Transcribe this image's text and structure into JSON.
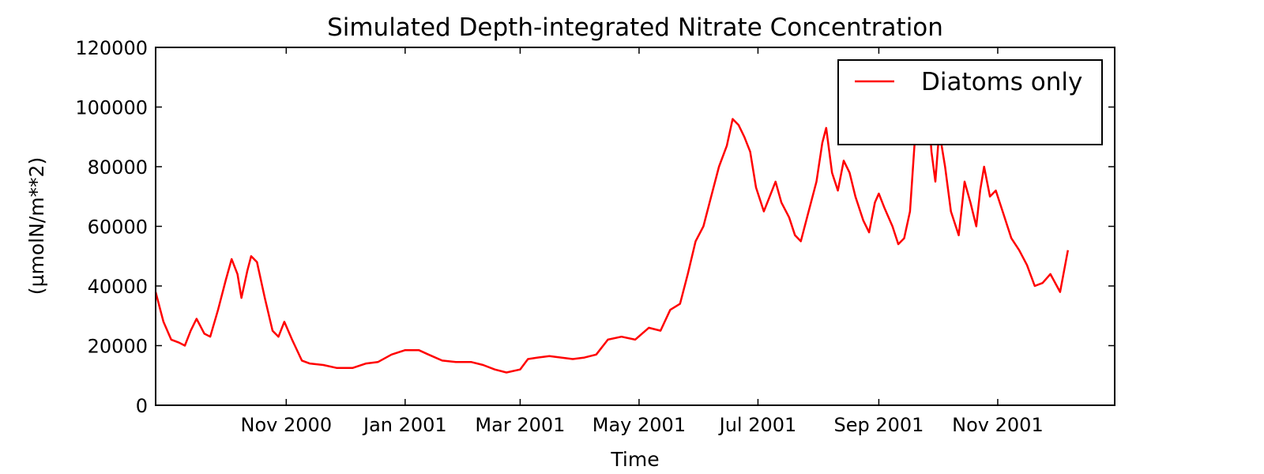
{
  "chart_data": {
    "type": "line",
    "title": "Simulated Depth-integrated Nitrate Concentration",
    "xlabel": "Time",
    "ylabel": "(µmolN/m**2)",
    "x_range": [
      "2000-08-26",
      "2001-12-31"
    ],
    "ylim": [
      0,
      120000
    ],
    "yticks": [
      0,
      20000,
      40000,
      60000,
      80000,
      100000,
      120000
    ],
    "xticks": [
      {
        "date": "2000-11-01",
        "label": "Nov 2000"
      },
      {
        "date": "2001-01-01",
        "label": "Jan 2001"
      },
      {
        "date": "2001-03-01",
        "label": "Mar 2001"
      },
      {
        "date": "2001-05-01",
        "label": "May 2001"
      },
      {
        "date": "2001-07-01",
        "label": "Jul 2001"
      },
      {
        "date": "2001-09-01",
        "label": "Sep 2001"
      },
      {
        "date": "2001-11-01",
        "label": "Nov 2001"
      }
    ],
    "grid": false,
    "legend_position": "top-right",
    "series": [
      {
        "name": "Diatoms only",
        "color": "#ff0000",
        "points": [
          [
            "2000-08-26",
            38000
          ],
          [
            "2000-08-30",
            28000
          ],
          [
            "2000-09-03",
            22000
          ],
          [
            "2000-09-07",
            21000
          ],
          [
            "2000-09-10",
            20000
          ],
          [
            "2000-09-13",
            25000
          ],
          [
            "2000-09-16",
            29000
          ],
          [
            "2000-09-20",
            24000
          ],
          [
            "2000-09-23",
            23000
          ],
          [
            "2000-09-27",
            32000
          ],
          [
            "2000-10-01",
            42000
          ],
          [
            "2000-10-04",
            49000
          ],
          [
            "2000-10-07",
            44000
          ],
          [
            "2000-10-09",
            36000
          ],
          [
            "2000-10-12",
            45000
          ],
          [
            "2000-10-14",
            50000
          ],
          [
            "2000-10-17",
            48000
          ],
          [
            "2000-10-21",
            36000
          ],
          [
            "2000-10-25",
            25000
          ],
          [
            "2000-10-28",
            23000
          ],
          [
            "2000-10-31",
            28000
          ],
          [
            "2000-11-04",
            22000
          ],
          [
            "2000-11-09",
            15000
          ],
          [
            "2000-11-13",
            14000
          ],
          [
            "2000-11-20",
            13500
          ],
          [
            "2000-11-27",
            12500
          ],
          [
            "2000-12-05",
            12500
          ],
          [
            "2000-12-12",
            14000
          ],
          [
            "2000-12-18",
            14500
          ],
          [
            "2000-12-25",
            17000
          ],
          [
            "2001-01-01",
            18500
          ],
          [
            "2001-01-08",
            18500
          ],
          [
            "2001-01-13",
            17000
          ],
          [
            "2001-01-20",
            15000
          ],
          [
            "2001-01-27",
            14500
          ],
          [
            "2001-02-04",
            14500
          ],
          [
            "2001-02-10",
            13500
          ],
          [
            "2001-02-16",
            12000
          ],
          [
            "2001-02-22",
            11000
          ],
          [
            "2001-03-01",
            12000
          ],
          [
            "2001-03-05",
            15500
          ],
          [
            "2001-03-10",
            16000
          ],
          [
            "2001-03-16",
            16500
          ],
          [
            "2001-03-22",
            16000
          ],
          [
            "2001-03-28",
            15500
          ],
          [
            "2001-04-03",
            16000
          ],
          [
            "2001-04-09",
            17000
          ],
          [
            "2001-04-15",
            22000
          ],
          [
            "2001-04-22",
            23000
          ],
          [
            "2001-04-29",
            22000
          ],
          [
            "2001-05-06",
            26000
          ],
          [
            "2001-05-12",
            25000
          ],
          [
            "2001-05-17",
            32000
          ],
          [
            "2001-05-22",
            34000
          ],
          [
            "2001-05-26",
            44000
          ],
          [
            "2001-05-30",
            55000
          ],
          [
            "2001-06-03",
            60000
          ],
          [
            "2001-06-07",
            70000
          ],
          [
            "2001-06-11",
            80000
          ],
          [
            "2001-06-15",
            87000
          ],
          [
            "2001-06-18",
            96000
          ],
          [
            "2001-06-21",
            94000
          ],
          [
            "2001-06-24",
            90000
          ],
          [
            "2001-06-27",
            85000
          ],
          [
            "2001-06-30",
            73000
          ],
          [
            "2001-07-04",
            65000
          ],
          [
            "2001-07-07",
            70000
          ],
          [
            "2001-07-10",
            75000
          ],
          [
            "2001-07-13",
            68000
          ],
          [
            "2001-07-17",
            63000
          ],
          [
            "2001-07-20",
            57000
          ],
          [
            "2001-07-23",
            55000
          ],
          [
            "2001-07-27",
            65000
          ],
          [
            "2001-07-31",
            75000
          ],
          [
            "2001-08-03",
            88000
          ],
          [
            "2001-08-05",
            93000
          ],
          [
            "2001-08-08",
            78000
          ],
          [
            "2001-08-11",
            72000
          ],
          [
            "2001-08-14",
            82000
          ],
          [
            "2001-08-17",
            78000
          ],
          [
            "2001-08-20",
            70000
          ],
          [
            "2001-08-24",
            62000
          ],
          [
            "2001-08-27",
            58000
          ],
          [
            "2001-08-30",
            68000
          ],
          [
            "2001-09-01",
            71000
          ],
          [
            "2001-09-04",
            66000
          ],
          [
            "2001-09-08",
            60000
          ],
          [
            "2001-09-11",
            54000
          ],
          [
            "2001-09-14",
            56000
          ],
          [
            "2001-09-17",
            65000
          ],
          [
            "2001-09-20",
            94000
          ],
          [
            "2001-09-22",
            92000
          ],
          [
            "2001-09-24",
            98000
          ],
          [
            "2001-09-26",
            103000
          ],
          [
            "2001-09-28",
            85000
          ],
          [
            "2001-09-30",
            75000
          ],
          [
            "2001-10-02",
            92000
          ],
          [
            "2001-10-05",
            80000
          ],
          [
            "2001-10-08",
            65000
          ],
          [
            "2001-10-12",
            57000
          ],
          [
            "2001-10-15",
            75000
          ],
          [
            "2001-10-18",
            68000
          ],
          [
            "2001-10-21",
            60000
          ],
          [
            "2001-10-23",
            72000
          ],
          [
            "2001-10-25",
            80000
          ],
          [
            "2001-10-28",
            70000
          ],
          [
            "2001-10-31",
            72000
          ],
          [
            "2001-11-04",
            64000
          ],
          [
            "2001-11-08",
            56000
          ],
          [
            "2001-11-12",
            52000
          ],
          [
            "2001-11-16",
            47000
          ],
          [
            "2001-11-20",
            40000
          ],
          [
            "2001-11-24",
            41000
          ],
          [
            "2001-11-28",
            44000
          ],
          [
            "2001-12-03",
            38000
          ],
          [
            "2001-12-07",
            52000
          ]
        ]
      }
    ]
  }
}
